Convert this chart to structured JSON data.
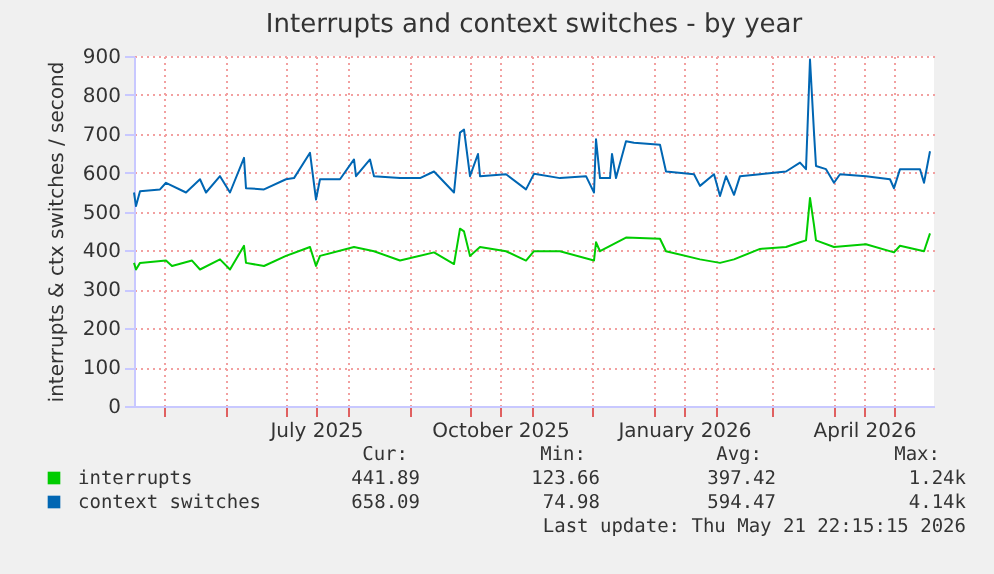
{
  "chart_data": {
    "type": "line",
    "title": "Interrupts and context switches - by year",
    "ylabel": "interrupts & ctx switches / second",
    "xlim": [
      "2025-04-16",
      "2026-05-21"
    ],
    "xticks": [
      {
        "value": "2025-05-01",
        "label": null
      },
      {
        "value": "2025-06-01",
        "label": null
      },
      {
        "value": "2025-07-01",
        "label": null
      },
      {
        "value": "2025-07-16",
        "label": "July 2025"
      },
      {
        "value": "2025-08-01",
        "label": null
      },
      {
        "value": "2025-09-01",
        "label": null
      },
      {
        "value": "2025-10-01",
        "label": null
      },
      {
        "value": "2025-10-16",
        "label": "October 2025"
      },
      {
        "value": "2025-11-01",
        "label": null
      },
      {
        "value": "2025-12-01",
        "label": null
      },
      {
        "value": "2026-01-01",
        "label": null
      },
      {
        "value": "2026-01-16",
        "label": "January 2026"
      },
      {
        "value": "2026-02-01",
        "label": null
      },
      {
        "value": "2026-03-01",
        "label": null
      },
      {
        "value": "2026-04-01",
        "label": null
      },
      {
        "value": "2026-04-16",
        "label": "April 2026"
      },
      {
        "value": "2026-05-01",
        "label": null
      }
    ],
    "ylim": [
      0,
      900
    ],
    "yticks": [
      0,
      100,
      200,
      300,
      400,
      500,
      600,
      700,
      800,
      900
    ],
    "grid": true,
    "legend": "bottom left",
    "series": [
      {
        "name": "interrupts",
        "color": "#00cc00",
        "x": [
          "2025-04-16",
          "2025-04-17",
          "2025-04-19",
          "2025-05-02",
          "2025-05-05",
          "2025-05-15",
          "2025-05-19",
          "2025-05-29",
          "2025-06-03",
          "2025-06-10",
          "2025-06-11",
          "2025-06-20",
          "2025-07-01",
          "2025-07-13",
          "2025-07-16",
          "2025-07-18",
          "2025-08-04",
          "2025-08-14",
          "2025-08-27",
          "2025-09-13",
          "2025-09-23",
          "2025-09-26",
          "2025-09-28",
          "2025-10-01",
          "2025-10-06",
          "2025-10-19",
          "2025-10-29",
          "2025-11-02",
          "2025-11-15",
          "2025-12-02",
          "2025-12-03",
          "2025-12-05",
          "2025-12-18",
          "2026-01-04",
          "2026-01-07",
          "2026-01-24",
          "2026-02-03",
          "2026-02-10",
          "2026-02-23",
          "2026-03-08",
          "2026-03-15",
          "2026-03-18",
          "2026-03-20",
          "2026-03-22",
          "2026-03-23",
          "2026-04-01",
          "2026-04-17",
          "2026-05-01",
          "2026-05-04",
          "2026-05-16",
          "2026-05-19"
        ],
        "values": [
          368,
          351,
          368,
          374,
          360,
          374,
          351,
          377,
          351,
          412,
          368,
          360,
          386,
          409,
          360,
          386,
          409,
          398,
          374,
          395,
          365,
          456,
          449,
          386,
          409,
          398,
          374,
          398,
          398,
          374,
          421,
          398,
          433,
          430,
          398,
          377,
          368,
          377,
          404,
          409,
          421,
          426,
          535,
          465,
          426,
          409,
          416,
          395,
          412,
          398,
          444
        ]
      },
      {
        "name": "context switches",
        "color": "#0066b3",
        "x": [
          "2025-04-16",
          "2025-04-17",
          "2025-04-19",
          "2025-04-29",
          "2025-05-02",
          "2025-05-12",
          "2025-05-19",
          "2025-05-22",
          "2025-05-29",
          "2025-06-03",
          "2025-06-10",
          "2025-06-11",
          "2025-06-20",
          "2025-07-01",
          "2025-07-05",
          "2025-07-13",
          "2025-07-16",
          "2025-07-18",
          "2025-07-28",
          "2025-08-04",
          "2025-08-05",
          "2025-08-12",
          "2025-08-14",
          "2025-08-27",
          "2025-09-06",
          "2025-09-13",
          "2025-09-23",
          "2025-09-26",
          "2025-09-28",
          "2025-10-01",
          "2025-10-05",
          "2025-10-06",
          "2025-10-19",
          "2025-10-29",
          "2025-11-02",
          "2025-11-15",
          "2025-11-28",
          "2025-12-02",
          "2025-12-03",
          "2025-12-05",
          "2025-12-10",
          "2025-12-11",
          "2025-12-13",
          "2025-12-18",
          "2025-12-22",
          "2026-01-04",
          "2026-01-07",
          "2026-01-21",
          "2026-01-24",
          "2026-01-31",
          "2026-02-03",
          "2026-02-06",
          "2026-02-10",
          "2026-02-13",
          "2026-02-23",
          "2026-03-08",
          "2026-03-15",
          "2026-03-18",
          "2026-03-20",
          "2026-03-22",
          "2026-03-23",
          "2026-03-28",
          "2026-04-01",
          "2026-04-04",
          "2026-04-17",
          "2026-04-29",
          "2026-05-01",
          "2026-05-04",
          "2026-05-14",
          "2026-05-16",
          "2026-05-19"
        ],
        "values": [
          549,
          514,
          552,
          557,
          574,
          549,
          583,
          549,
          591,
          549,
          638,
          560,
          557,
          583,
          586,
          651,
          531,
          583,
          583,
          634,
          591,
          634,
          591,
          586,
          586,
          603,
          549,
          703,
          711,
          591,
          648,
          591,
          596,
          557,
          597,
          586,
          591,
          549,
          686,
          586,
          586,
          648,
          586,
          681,
          677,
          672,
          603,
          596,
          566,
          596,
          540,
          591,
          543,
          591,
          596,
          603,
          626,
          609,
          891,
          703,
          617,
          609,
          574,
          596,
          591,
          583,
          560,
          609,
          609,
          574,
          655
        ]
      }
    ],
    "annotations": [
      "Cur:",
      "Min:",
      "Avg:",
      "Max:",
      "441.89",
      "123.66",
      "397.42",
      "1.24k",
      "658.09",
      "74.98",
      "594.47",
      "4.14k",
      "Last update: Thu May 21 22:15:15 2026"
    ]
  }
}
